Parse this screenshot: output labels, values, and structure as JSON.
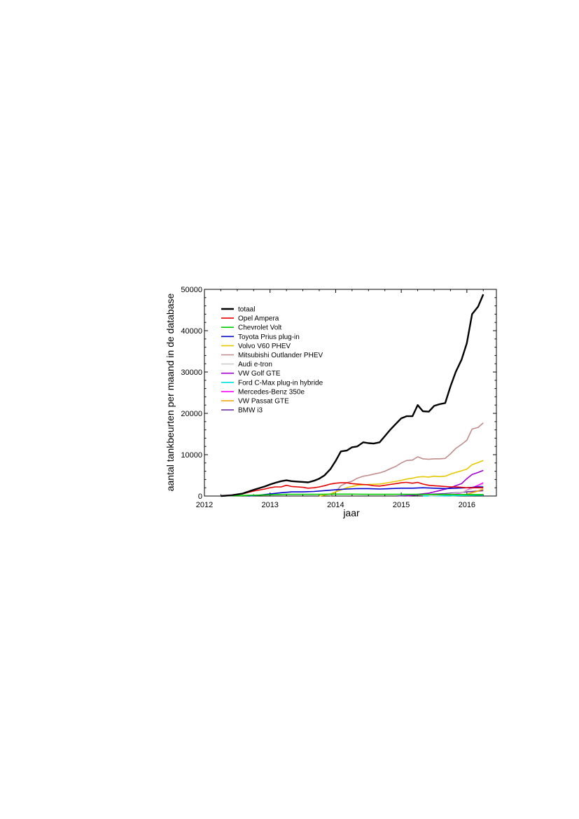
{
  "chart_data": {
    "type": "line",
    "title": "",
    "xlabel": "jaar",
    "ylabel": "aantal tankbeurten per maand in de database",
    "xlim": [
      2012,
      2016.45
    ],
    "ylim": [
      0,
      50000
    ],
    "xticks": [
      2012,
      2013,
      2014,
      2015,
      2016
    ],
    "yticks": [
      0,
      10000,
      20000,
      30000,
      40000,
      50000
    ],
    "grid": false,
    "legend_position": "top-left",
    "series": [
      {
        "name": "totaal",
        "color": "#000000",
        "x": [
          2012.25,
          2012.42,
          2012.58,
          2012.75,
          2012.92,
          2013.0,
          2013.08,
          2013.17,
          2013.25,
          2013.33,
          2013.42,
          2013.5,
          2013.58,
          2013.67,
          2013.75,
          2013.83,
          2013.92,
          2014.0,
          2014.08,
          2014.17,
          2014.25,
          2014.33,
          2014.42,
          2014.5,
          2014.58,
          2014.67,
          2014.75,
          2014.83,
          2014.92,
          2015.0,
          2015.08,
          2015.17,
          2015.25,
          2015.33,
          2015.42,
          2015.5,
          2015.58,
          2015.67,
          2015.75,
          2015.83,
          2015.92,
          2016.0,
          2016.08,
          2016.17,
          2016.25
        ],
        "y": [
          0,
          200,
          600,
          1500,
          2300,
          2800,
          3200,
          3600,
          3800,
          3600,
          3500,
          3400,
          3300,
          3700,
          4200,
          5000,
          6500,
          8500,
          10800,
          11000,
          11800,
          12000,
          13000,
          12800,
          12700,
          13000,
          14500,
          16000,
          17500,
          18800,
          19300,
          19300,
          22000,
          20500,
          20400,
          21800,
          22200,
          22500,
          26500,
          30000,
          33000,
          37000,
          44000,
          45800,
          48800
        ]
      },
      {
        "name": "Opel Ampera",
        "color": "#e60000",
        "x": [
          2012.25,
          2012.42,
          2012.58,
          2012.75,
          2012.92,
          2013.0,
          2013.08,
          2013.17,
          2013.25,
          2013.33,
          2013.42,
          2013.5,
          2013.58,
          2013.67,
          2013.75,
          2013.83,
          2013.92,
          2014.0,
          2014.08,
          2014.17,
          2014.25,
          2014.33,
          2014.42,
          2014.5,
          2014.58,
          2014.67,
          2014.75,
          2014.83,
          2014.92,
          2015.0,
          2015.08,
          2015.17,
          2015.25,
          2015.33,
          2015.42,
          2015.5,
          2015.58,
          2015.67,
          2015.75,
          2015.83,
          2015.92,
          2016.0,
          2016.08,
          2016.17,
          2016.25
        ],
        "y": [
          0,
          200,
          500,
          1200,
          1700,
          2000,
          2200,
          2200,
          2600,
          2300,
          2200,
          2100,
          1900,
          2000,
          2200,
          2500,
          2900,
          3100,
          3200,
          3200,
          3000,
          2900,
          2800,
          2700,
          2500,
          2400,
          2600,
          2800,
          3000,
          3200,
          3300,
          3100,
          3300,
          2900,
          2600,
          2500,
          2400,
          2300,
          2200,
          2200,
          2100,
          2000,
          2000,
          2000,
          2000
        ]
      },
      {
        "name": "Chevrolet Volt",
        "color": "#00cc00",
        "x": [
          2012.25,
          2012.5,
          2012.75,
          2013.0,
          2013.25,
          2013.5,
          2013.75,
          2014.0,
          2014.25,
          2014.5,
          2014.75,
          2015.0,
          2015.25,
          2015.5,
          2015.75,
          2016.0,
          2016.25
        ],
        "y": [
          0,
          100,
          200,
          300,
          400,
          400,
          400,
          450,
          450,
          400,
          400,
          400,
          400,
          350,
          350,
          350,
          350
        ]
      },
      {
        "name": "Toyota Prius plug-in",
        "color": "#0000cc",
        "x": [
          2012.67,
          2012.83,
          2013.0,
          2013.17,
          2013.33,
          2013.5,
          2013.67,
          2013.83,
          2014.0,
          2014.17,
          2014.33,
          2014.5,
          2014.67,
          2014.83,
          2015.0,
          2015.17,
          2015.33,
          2015.5,
          2015.67,
          2015.83,
          2016.0,
          2016.17,
          2016.25
        ],
        "y": [
          0,
          200,
          500,
          800,
          1000,
          1000,
          1100,
          1300,
          1500,
          1700,
          1800,
          1800,
          1700,
          1800,
          1900,
          1900,
          2000,
          1900,
          1800,
          1900,
          2000,
          2200,
          2200
        ]
      },
      {
        "name": "Volvo V60 PHEV",
        "color": "#e6c800",
        "x": [
          2013.75,
          2013.92,
          2014.0,
          2014.17,
          2014.33,
          2014.5,
          2014.67,
          2014.83,
          2015.0,
          2015.08,
          2015.17,
          2015.25,
          2015.33,
          2015.42,
          2015.5,
          2015.58,
          2015.67,
          2015.75,
          2015.83,
          2015.92,
          2016.0,
          2016.08,
          2016.17,
          2016.25
        ],
        "y": [
          0,
          500,
          1000,
          2000,
          2600,
          2800,
          2900,
          3300,
          3800,
          4100,
          4300,
          4600,
          4700,
          4600,
          4800,
          4700,
          4800,
          5300,
          5700,
          6100,
          6500,
          7600,
          8100,
          8600
        ]
      },
      {
        "name": "Mitsubishi Outlander PHEV",
        "color": "#c08c8c",
        "x": [
          2013.92,
          2014.0,
          2014.08,
          2014.17,
          2014.25,
          2014.33,
          2014.42,
          2014.5,
          2014.58,
          2014.67,
          2014.75,
          2014.83,
          2014.92,
          2015.0,
          2015.08,
          2015.17,
          2015.25,
          2015.33,
          2015.42,
          2015.5,
          2015.58,
          2015.67,
          2015.75,
          2015.83,
          2015.92,
          2016.0,
          2016.08,
          2016.17,
          2016.25
        ],
        "y": [
          0,
          1000,
          2500,
          3200,
          3600,
          4300,
          4800,
          5000,
          5300,
          5600,
          6000,
          6600,
          7200,
          8000,
          8600,
          8700,
          9500,
          9000,
          8900,
          9000,
          9000,
          9100,
          10200,
          11500,
          12500,
          13500,
          16200,
          16600,
          17700
        ]
      },
      {
        "name": "Audi e-tron",
        "color": "#cccccc",
        "x": [
          2015.42,
          2015.58,
          2015.75,
          2015.92,
          2016.0,
          2016.08,
          2016.17,
          2016.25
        ],
        "y": [
          0,
          200,
          500,
          900,
          1300,
          1800,
          2300,
          2800
        ]
      },
      {
        "name": "VW Golf GTE",
        "color": "#a000d0",
        "x": [
          2015.08,
          2015.25,
          2015.42,
          2015.58,
          2015.75,
          2015.83,
          2015.92,
          2016.0,
          2016.08,
          2016.17,
          2016.25
        ],
        "y": [
          0,
          400,
          700,
          1300,
          2000,
          2500,
          3000,
          4200,
          5200,
          5700,
          6200
        ]
      },
      {
        "name": "Ford C-Max plug-in hybride",
        "color": "#00e0e0",
        "x": [
          2015.33,
          2015.58,
          2015.83,
          2016.0,
          2016.17,
          2016.25
        ],
        "y": [
          0,
          50,
          100,
          150,
          200,
          200
        ]
      },
      {
        "name": "Mercedes-Benz 350e",
        "color": "#ff00ff",
        "x": [
          2015.58,
          2015.75,
          2015.92,
          2016.0,
          2016.08,
          2016.17,
          2016.25
        ],
        "y": [
          0,
          300,
          800,
          1400,
          2000,
          2600,
          3200
        ]
      },
      {
        "name": "VW Passat GTE",
        "color": "#f0a000",
        "x": [
          2015.75,
          2015.92,
          2016.0,
          2016.08,
          2016.17,
          2016.25
        ],
        "y": [
          0,
          200,
          400,
          800,
          1200,
          1700
        ]
      },
      {
        "name": "BMW i3",
        "color": "#7030a0",
        "x": [
          2014.92,
          2015.17,
          2015.42,
          2015.67,
          2015.92,
          2016.0,
          2016.17,
          2016.25
        ],
        "y": [
          0,
          200,
          400,
          600,
          900,
          1000,
          1200,
          1300
        ]
      }
    ]
  }
}
